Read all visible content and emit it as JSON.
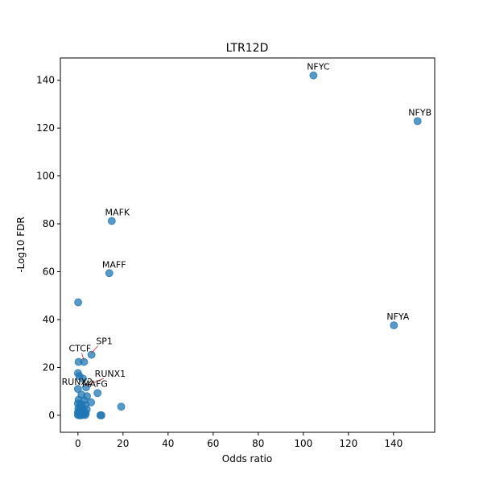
{
  "chart_data": {
    "type": "scatter",
    "title": "LTR12D",
    "xlabel": "Odds ratio",
    "ylabel": "-Log10 FDR",
    "xlim": [
      -7.8,
      158.3
    ],
    "ylim": [
      -7.1,
      149.3
    ],
    "xticks": [
      0,
      20,
      40,
      60,
      80,
      100,
      120,
      140
    ],
    "yticks": [
      0,
      20,
      40,
      60,
      80,
      100,
      120,
      140
    ],
    "grid": false,
    "point_color": "#1f77b4",
    "points": [
      {
        "x": 104.5,
        "y": 142.0
      },
      {
        "x": 150.7,
        "y": 122.9
      },
      {
        "x": 15.0,
        "y": 81.2
      },
      {
        "x": 13.9,
        "y": 59.4
      },
      {
        "x": 0.1,
        "y": 47.2
      },
      {
        "x": 140.2,
        "y": 37.6
      },
      {
        "x": 6.0,
        "y": 25.3
      },
      {
        "x": 0.3,
        "y": 22.3
      },
      {
        "x": 2.7,
        "y": 22.3
      },
      {
        "x": 0.0,
        "y": 17.6
      },
      {
        "x": 0.6,
        "y": 16.4
      },
      {
        "x": 2.2,
        "y": 15.3
      },
      {
        "x": 3.6,
        "y": 11.7
      },
      {
        "x": 0.0,
        "y": 11.0
      },
      {
        "x": 8.7,
        "y": 9.3
      },
      {
        "x": 1.6,
        "y": 8.6
      },
      {
        "x": 4.0,
        "y": 8.0
      },
      {
        "x": 0.3,
        "y": 6.5
      },
      {
        "x": 2.7,
        "y": 6.2
      },
      {
        "x": 5.8,
        "y": 5.4
      },
      {
        "x": 0.0,
        "y": 4.9
      },
      {
        "x": 1.2,
        "y": 4.6
      },
      {
        "x": 3.3,
        "y": 4.4
      },
      {
        "x": 0.8,
        "y": 3.8
      },
      {
        "x": 19.2,
        "y": 3.6
      },
      {
        "x": 2.1,
        "y": 3.2
      },
      {
        "x": 0.2,
        "y": 2.8
      },
      {
        "x": 3.9,
        "y": 2.5
      },
      {
        "x": 1.5,
        "y": 2.2
      },
      {
        "x": 0.6,
        "y": 1.8
      },
      {
        "x": 2.8,
        "y": 1.6
      },
      {
        "x": 0.0,
        "y": 1.2
      },
      {
        "x": 1.9,
        "y": 1.0
      },
      {
        "x": 3.5,
        "y": 0.8
      },
      {
        "x": 0.4,
        "y": 0.6
      },
      {
        "x": 1.1,
        "y": 0.4
      },
      {
        "x": 2.4,
        "y": 0.3
      },
      {
        "x": 0.0,
        "y": 0.1
      },
      {
        "x": 3.2,
        "y": 0.1
      },
      {
        "x": 10.0,
        "y": 0.0
      },
      {
        "x": 10.4,
        "y": 0.0
      },
      {
        "x": 1.5,
        "y": 0.0
      },
      {
        "x": 0.7,
        "y": 0.0
      }
    ],
    "annotations": [
      {
        "label": "NFYC",
        "x": 104.5,
        "y": 142.0
      },
      {
        "label": "NFYB",
        "x": 150.7,
        "y": 122.9
      },
      {
        "label": "MAFK",
        "x": 15.0,
        "y": 81.2
      },
      {
        "label": "MAFF",
        "x": 13.9,
        "y": 59.4
      },
      {
        "label": "NFYA",
        "x": 140.2,
        "y": 37.6
      },
      {
        "label": "SP1",
        "x": 6.0,
        "y": 25.3
      },
      {
        "label": "CTCF",
        "x": 2.7,
        "y": 22.3
      },
      {
        "label": "RUNX1",
        "x": 3.6,
        "y": 11.7
      },
      {
        "label": "RUNX2",
        "x": 0.0,
        "y": 11.0
      },
      {
        "label": "MAFG",
        "x": 2.2,
        "y": 6.2
      }
    ]
  }
}
